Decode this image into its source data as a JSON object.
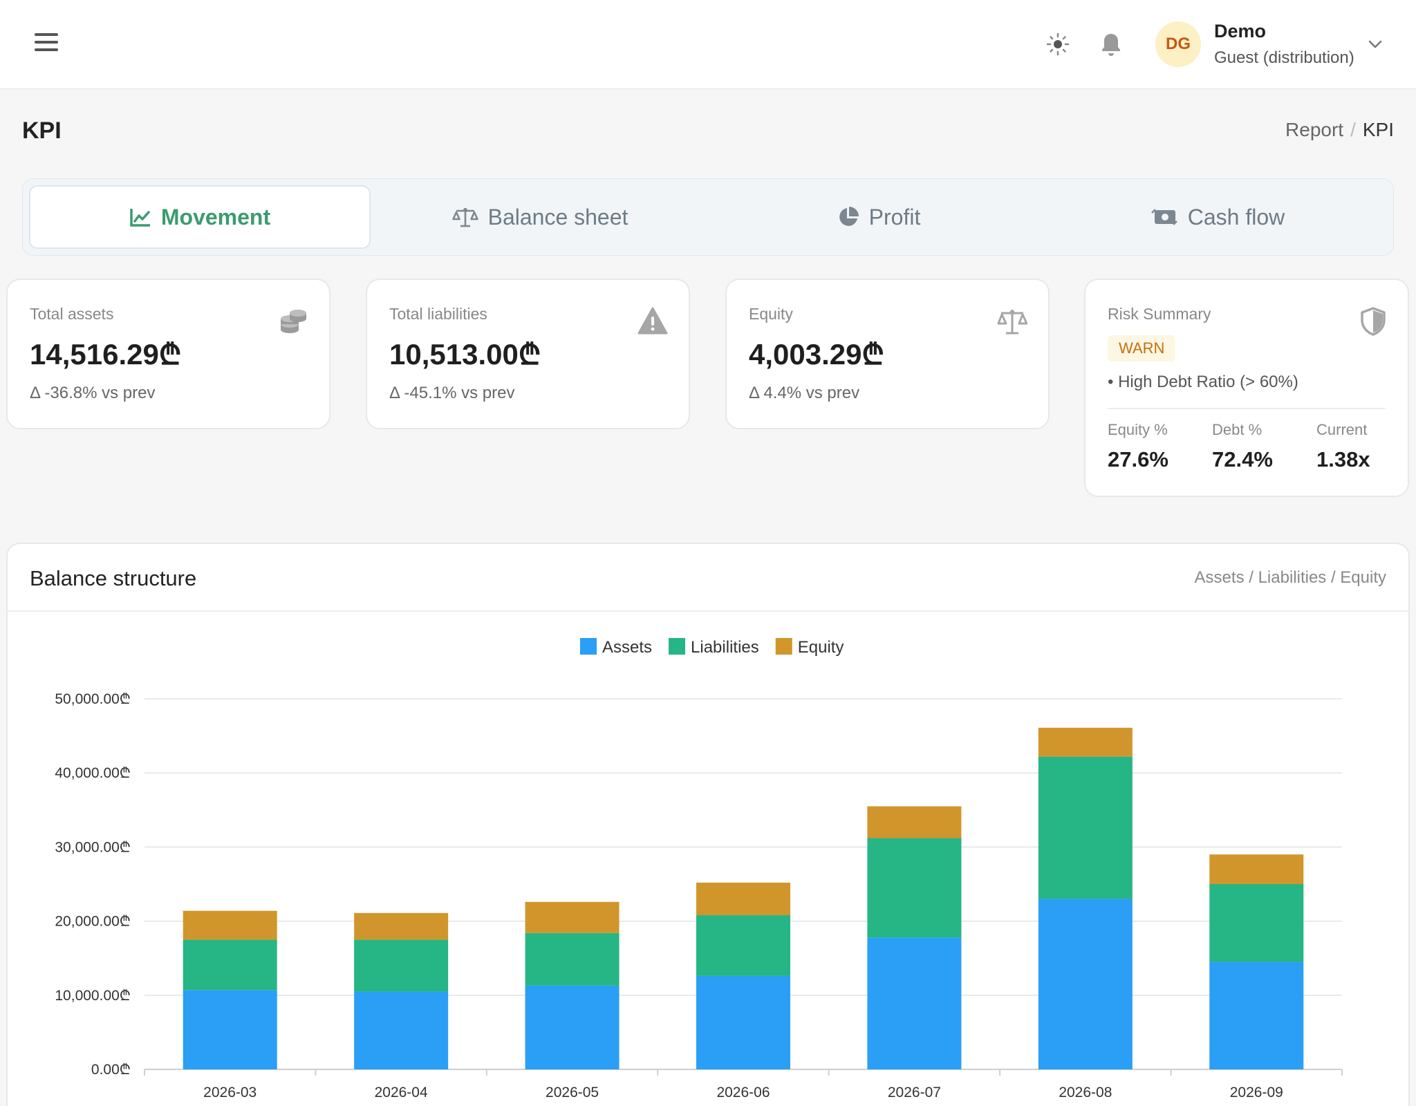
{
  "header": {
    "user": {
      "initials": "DG",
      "name": "Demo",
      "role": "Guest (distribution)"
    }
  },
  "page": {
    "title": "KPI",
    "breadcrumb": [
      "Report",
      "KPI"
    ]
  },
  "tabs": [
    {
      "label": "Movement",
      "icon": "chart-line-icon",
      "active": true
    },
    {
      "label": "Balance sheet",
      "icon": "scale-icon",
      "active": false
    },
    {
      "label": "Profit",
      "icon": "pie-chart-icon",
      "active": false
    },
    {
      "label": "Cash flow",
      "icon": "money-exchange-icon",
      "active": false
    }
  ],
  "kpis": [
    {
      "label": "Total assets",
      "value": "14,516.29₾",
      "delta": "Δ -36.8% vs prev",
      "icon": "coins-icon"
    },
    {
      "label": "Total liabilities",
      "value": "10,513.00₾",
      "delta": "Δ -45.1% vs prev",
      "icon": "warning-icon"
    },
    {
      "label": "Equity",
      "value": "4,003.29₾",
      "delta": "Δ 4.4% vs prev",
      "icon": "scale-icon"
    }
  ],
  "risk": {
    "title": "Risk Summary",
    "badge": "WARN",
    "item": "• High Debt Ratio (> 60%)",
    "stats": [
      {
        "label": "Equity %",
        "value": "27.6%"
      },
      {
        "label": "Debt %",
        "value": "72.4%"
      },
      {
        "label": "Current",
        "value": "1.38x"
      }
    ]
  },
  "chart_card": {
    "title": "Balance structure",
    "subtitle": "Assets / Liabilities / Equity"
  },
  "chart_data": {
    "type": "bar",
    "stacked": true,
    "categories": [
      "2026-03",
      "2026-04",
      "2026-05",
      "2026-06",
      "2026-07",
      "2026-08",
      "2026-09"
    ],
    "series": [
      {
        "name": "Assets",
        "color": "#2a9ff5",
        "values": [
          10700,
          10500,
          11300,
          12600,
          17800,
          23000,
          14500
        ]
      },
      {
        "name": "Liabilities",
        "color": "#26b585",
        "values": [
          6800,
          7000,
          7100,
          8200,
          13400,
          19200,
          10500
        ]
      },
      {
        "name": "Equity",
        "color": "#d1962b",
        "values": [
          3900,
          3600,
          4200,
          4400,
          4300,
          3900,
          4000
        ]
      }
    ],
    "yticks": [
      "0.00₾",
      "10,000.00₾",
      "20,000.00₾",
      "30,000.00₾",
      "40,000.00₾",
      "50,000.00₾"
    ],
    "ylim": [
      0,
      50000
    ],
    "legend": "top-center",
    "grid": true
  }
}
